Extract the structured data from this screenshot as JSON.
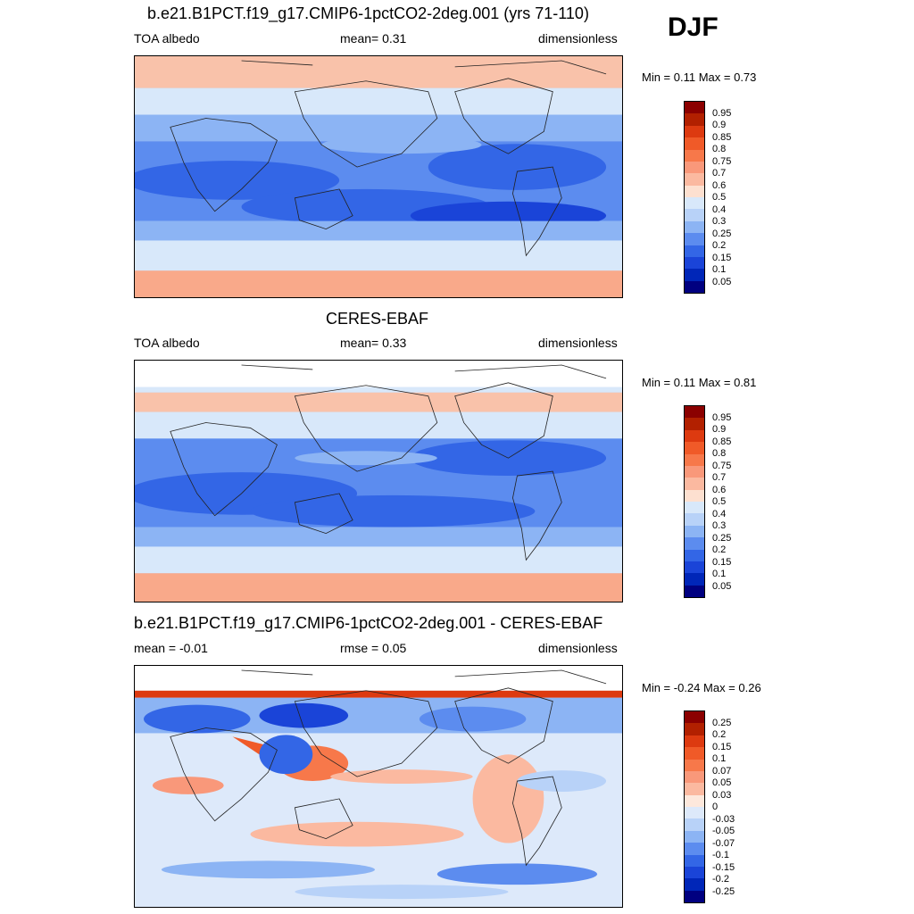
{
  "season": "DJF",
  "panels": [
    {
      "title": "b.e21.B1PCT.f19_g17.CMIP6-1pctCO2-2deg.001 (yrs 71-110)",
      "left": "TOA albedo",
      "center": "mean=   0.31",
      "right": "dimensionless",
      "minmax": "Min =   0.11 Max =   0.73",
      "scale": "abs"
    },
    {
      "title": "CERES-EBAF",
      "left": "TOA albedo",
      "center": "mean=   0.33",
      "right": "dimensionless",
      "minmax": "Min =   0.11 Max =   0.81",
      "scale": "abs"
    },
    {
      "title": "b.e21.B1PCT.f19_g17.CMIP6-1pctCO2-2deg.001 - CERES-EBAF",
      "left": "mean =  -0.01",
      "center": "rmse =   0.05",
      "right": "dimensionless",
      "minmax": "Min =  -0.24 Max =   0.26",
      "scale": "diff"
    }
  ],
  "colorbars": {
    "abs": {
      "labels": [
        "0.95",
        "0.9",
        "0.85",
        "0.8",
        "0.75",
        "0.7",
        "0.6",
        "0.5",
        "0.4",
        "0.3",
        "0.25",
        "0.2",
        "0.15",
        "0.1",
        "0.05"
      ],
      "colors": [
        "#8b0000",
        "#b22000",
        "#dd3a10",
        "#f05a28",
        "#f7784a",
        "#f9987a",
        "#fbb9a0",
        "#fde0d0",
        "#d8e8fa",
        "#b8d2f8",
        "#8cb4f4",
        "#5c8cef",
        "#3366e6",
        "#1a44d8",
        "#0026b8",
        "#000080"
      ]
    },
    "diff": {
      "labels": [
        "0.25",
        "0.2",
        "0.15",
        "0.1",
        "0.07",
        "0.05",
        "0.03",
        "0",
        "-0.03",
        "-0.05",
        "-0.07",
        "-0.1",
        "-0.15",
        "-0.2",
        "-0.25"
      ],
      "colors": [
        "#8b0000",
        "#b22000",
        "#dd3a10",
        "#f05a28",
        "#f7784a",
        "#f9987a",
        "#fbb9a0",
        "#fde8dc",
        "#dde9fa",
        "#b8d2f8",
        "#8cb4f4",
        "#5c8cef",
        "#3366e6",
        "#1a44d8",
        "#0026b8",
        "#000080"
      ]
    }
  }
}
